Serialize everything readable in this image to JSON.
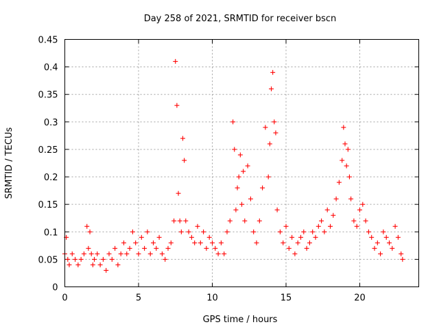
{
  "chart_data": {
    "type": "scatter",
    "title": "Day 258 of 2021, SRMTID for receiver bscn",
    "xlabel": "GPS time / hours",
    "ylabel": "SRMTID / TECUs",
    "xlim": [
      0,
      24
    ],
    "ylim": [
      0,
      0.45
    ],
    "xticks": [
      "0",
      "5",
      "10",
      "15",
      "20"
    ],
    "xtick_values": [
      0,
      5,
      10,
      15,
      20
    ],
    "yticks": [
      "0",
      "0.05",
      "0.1",
      "0.15",
      "0.2",
      "0.25",
      "0.3",
      "0.35",
      "0.4",
      "0.45"
    ],
    "ytick_values": [
      0,
      0.05,
      0.1,
      0.15,
      0.2,
      0.25,
      0.3,
      0.35,
      0.4,
      0.45
    ],
    "grid": true,
    "marker": "+",
    "color": "#ff0000",
    "data_range_hours": [
      0,
      22.9
    ],
    "series": [
      {
        "name": "SRMTID",
        "x": [
          0.0,
          0.1,
          0.2,
          0.3,
          0.5,
          0.7,
          0.9,
          1.1,
          1.3,
          1.5,
          1.6,
          1.7,
          1.8,
          1.9,
          2.0,
          2.2,
          2.4,
          2.6,
          2.8,
          3.0,
          3.2,
          3.4,
          3.6,
          3.8,
          4.0,
          4.2,
          4.4,
          4.6,
          4.8,
          5.0,
          5.2,
          5.4,
          5.6,
          5.8,
          6.0,
          6.2,
          6.4,
          6.6,
          6.8,
          7.0,
          7.2,
          7.4,
          7.5,
          7.6,
          7.7,
          7.8,
          7.9,
          8.0,
          8.1,
          8.2,
          8.4,
          8.6,
          8.8,
          9.0,
          9.2,
          9.4,
          9.6,
          9.8,
          10.0,
          10.2,
          10.4,
          10.6,
          10.8,
          11.0,
          11.2,
          11.4,
          11.5,
          11.6,
          11.7,
          11.8,
          11.9,
          12.0,
          12.1,
          12.2,
          12.4,
          12.6,
          12.8,
          13.0,
          13.2,
          13.4,
          13.6,
          13.8,
          13.9,
          14.0,
          14.1,
          14.2,
          14.3,
          14.4,
          14.6,
          14.8,
          15.0,
          15.2,
          15.4,
          15.6,
          15.8,
          16.0,
          16.2,
          16.4,
          16.6,
          16.8,
          17.0,
          17.2,
          17.4,
          17.6,
          17.8,
          18.0,
          18.2,
          18.4,
          18.6,
          18.8,
          18.9,
          19.0,
          19.1,
          19.2,
          19.3,
          19.4,
          19.6,
          19.8,
          20.0,
          20.2,
          20.4,
          20.6,
          20.8,
          21.0,
          21.2,
          21.4,
          21.6,
          21.8,
          22.0,
          22.2,
          22.4,
          22.6,
          22.8,
          22.9
        ],
        "values": [
          0.06,
          0.09,
          0.05,
          0.04,
          0.06,
          0.05,
          0.04,
          0.05,
          0.06,
          0.11,
          0.07,
          0.1,
          0.06,
          0.04,
          0.05,
          0.06,
          0.04,
          0.05,
          0.03,
          0.06,
          0.05,
          0.07,
          0.04,
          0.06,
          0.08,
          0.06,
          0.07,
          0.1,
          0.08,
          0.06,
          0.09,
          0.07,
          0.1,
          0.06,
          0.08,
          0.07,
          0.09,
          0.06,
          0.05,
          0.07,
          0.08,
          0.12,
          0.41,
          0.33,
          0.17,
          0.12,
          0.1,
          0.27,
          0.23,
          0.12,
          0.1,
          0.09,
          0.08,
          0.11,
          0.08,
          0.1,
          0.07,
          0.09,
          0.08,
          0.07,
          0.06,
          0.08,
          0.06,
          0.1,
          0.12,
          0.3,
          0.25,
          0.14,
          0.18,
          0.2,
          0.24,
          0.15,
          0.21,
          0.12,
          0.22,
          0.16,
          0.1,
          0.08,
          0.12,
          0.18,
          0.29,
          0.2,
          0.26,
          0.36,
          0.39,
          0.3,
          0.28,
          0.14,
          0.1,
          0.08,
          0.11,
          0.07,
          0.09,
          0.06,
          0.08,
          0.09,
          0.1,
          0.07,
          0.08,
          0.1,
          0.09,
          0.11,
          0.12,
          0.1,
          0.14,
          0.11,
          0.13,
          0.16,
          0.19,
          0.23,
          0.29,
          0.26,
          0.22,
          0.25,
          0.2,
          0.16,
          0.12,
          0.11,
          0.14,
          0.15,
          0.12,
          0.1,
          0.09,
          0.07,
          0.08,
          0.06,
          0.1,
          0.09,
          0.08,
          0.07,
          0.11,
          0.09,
          0.06,
          0.05
        ]
      }
    ]
  }
}
